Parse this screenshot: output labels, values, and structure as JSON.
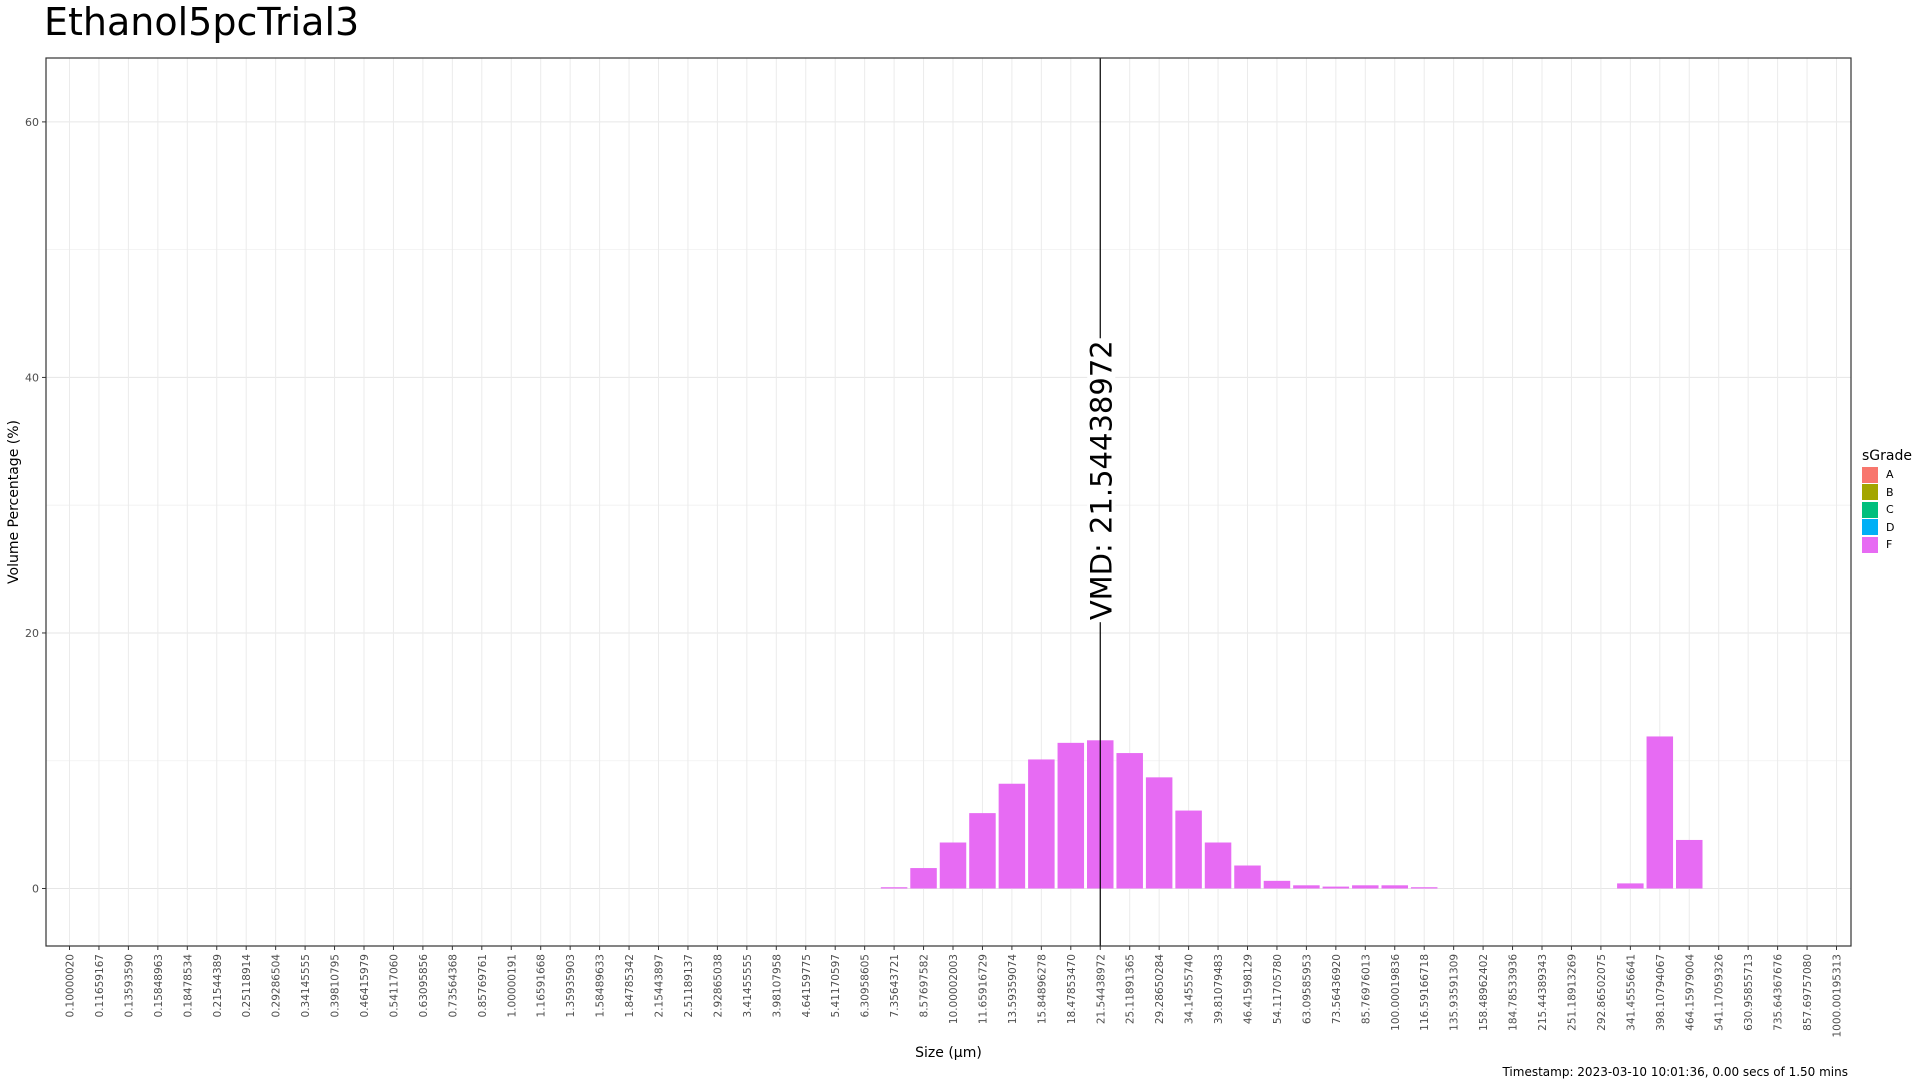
{
  "chart_data": {
    "type": "bar",
    "title": "Ethanol5pcTrial3",
    "xlabel": "Size (µm)",
    "ylabel": "Volume Percentage (%)",
    "ylim": [
      -4.5,
      65
    ],
    "yticks": [
      0,
      20,
      40,
      60
    ],
    "grid": true,
    "legend_title": "sGrade",
    "legend_placement": "right",
    "legend": [
      {
        "label": "A",
        "color": "#F8766D"
      },
      {
        "label": "B",
        "color": "#A3A500"
      },
      {
        "label": "C",
        "color": "#00BF7D"
      },
      {
        "label": "D",
        "color": "#00B0F6"
      },
      {
        "label": "F",
        "color": "#E76BF3"
      }
    ],
    "categories": [
      "0.10000020",
      "0.11659167",
      "0.13593590",
      "0.15848963",
      "0.18478534",
      "0.21544389",
      "0.25118914",
      "0.29286504",
      "0.34145555",
      "0.39810795",
      "0.46415979",
      "0.54117060",
      "0.63095856",
      "0.73564368",
      "0.85769761",
      "1.00000191",
      "1.16591668",
      "1.35935903",
      "1.58489633",
      "1.84785342",
      "2.15443897",
      "2.51189137",
      "2.92865038",
      "3.41455555",
      "3.98107958",
      "4.64159775",
      "5.41170597",
      "6.30958605",
      "7.35643721",
      "8.57697582",
      "10.00002003",
      "11.65916729",
      "13.59359074",
      "15.84896278",
      "18.47853470",
      "21.54438972",
      "25.11891365",
      "29.28650284",
      "34.14555740",
      "39.81079483",
      "46.41598129",
      "54.11705780",
      "63.09585953",
      "73.56436920",
      "85.76976013",
      "100.00019836",
      "116.59166718",
      "135.93591309",
      "158.48962402",
      "184.78533936",
      "215.44389343",
      "251.18913269",
      "292.86502075",
      "341.45556641",
      "398.10794067",
      "464.15979004",
      "541.17059326",
      "630.95855713",
      "735.64367676",
      "857.69757080",
      "1000.00195313"
    ],
    "series": [
      {
        "color": "#E76BF3",
        "values": [
          0,
          0,
          0,
          0,
          0,
          0,
          0,
          0,
          0,
          0,
          0,
          0,
          0,
          0,
          0,
          0,
          0,
          0,
          0,
          0,
          0,
          0,
          0,
          0,
          0,
          0,
          0,
          0,
          0.1,
          1.6,
          3.6,
          5.9,
          8.2,
          10.1,
          11.4,
          11.6,
          10.6,
          8.7,
          6.1,
          3.6,
          1.8,
          0.6,
          0.25,
          0.15,
          0.25,
          0.25,
          0.1,
          0,
          0,
          0,
          0,
          0,
          0,
          0.4,
          11.9,
          3.8,
          0,
          0,
          0,
          0,
          0
        ]
      }
    ],
    "vline": {
      "x": "21.54438972",
      "label": "VMD: 21.54438972"
    }
  },
  "timestamp": "Timestamp: 2023-03-10 10:01:36, 0.00 secs of 1.50 mins"
}
